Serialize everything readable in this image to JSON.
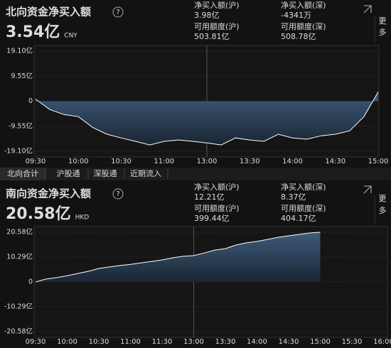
{
  "chart_data": [
    {
      "type": "area",
      "title": "北向资金净买入额",
      "help": "?",
      "total": "3.54亿",
      "currency": "CNY",
      "stats": [
        {
          "label": "净买入额(沪)",
          "value": "3.98亿",
          "color": "#f0323c"
        },
        {
          "label": "净买入额(深)",
          "value": "-4341万",
          "color": "#2fbf4a"
        },
        {
          "label": "可用额度(沪)",
          "value": "503.81亿",
          "color": "#dddddd"
        },
        {
          "label": "可用额度(深)",
          "value": "508.78亿",
          "color": "#dddddd"
        }
      ],
      "xticks": [
        "09:30",
        "10:00",
        "10:30",
        "11:00",
        "13:00",
        "13:30",
        "14:00",
        "14:30",
        "15:00"
      ],
      "ylim": [
        -19.1,
        19.1
      ],
      "yticks": [
        {
          "value": 19.1,
          "label": "19.10亿"
        },
        {
          "value": 9.55,
          "label": "9.55亿"
        },
        0,
        {
          "value": -9.55,
          "label": "-9.55亿"
        },
        {
          "value": -19.1,
          "label": "-19.10亿"
        }
      ],
      "x": [
        "09:30",
        "09:40",
        "09:50",
        "10:00",
        "10:10",
        "10:20",
        "10:30",
        "10:40",
        "10:50",
        "11:00",
        "11:10",
        "11:20",
        "11:30",
        "13:10",
        "13:20",
        "13:30",
        "13:40",
        "13:50",
        "14:00",
        "14:10",
        "14:20",
        "14:30",
        "14:40",
        "14:50",
        "15:00"
      ],
      "series": [
        {
          "name": "北向资金净买入额",
          "color": "#ffffff",
          "values": [
            0.8,
            -3.2,
            -5.1,
            -5.9,
            -10,
            -12.6,
            -14,
            -15.3,
            -16.7,
            -15.3,
            -14.8,
            -15.3,
            -15.9,
            -16.7,
            -14,
            -14.8,
            -15.3,
            -12.6,
            -14,
            -14.5,
            -13.2,
            -12.6,
            -11.3,
            -5.9,
            3.54
          ]
        }
      ]
    },
    {
      "type": "area",
      "title": "南向资金净买入额",
      "help": "?",
      "total": "20.58亿",
      "currency": "HKD",
      "stats": [
        {
          "label": "净买入额(沪)",
          "value": "12.21亿",
          "color": "#f0323c"
        },
        {
          "label": "净买入额(深)",
          "value": "8.37亿",
          "color": "#f0323c"
        },
        {
          "label": "可用额度(沪)",
          "value": "399.44亿",
          "color": "#dddddd"
        },
        {
          "label": "可用额度(深)",
          "value": "404.17亿",
          "color": "#dddddd"
        }
      ],
      "xticks": [
        "09:30",
        "10:00",
        "10:30",
        "11:00",
        "11:30",
        "13:00",
        "13:30",
        "14:00",
        "14:30",
        "15:00",
        "15:30",
        "16:00"
      ],
      "ylim": [
        -20.58,
        20.58
      ],
      "yticks": [
        {
          "value": 20.58,
          "label": "20.58亿"
        },
        {
          "value": 10.29,
          "label": "10.29亿"
        },
        0,
        {
          "value": -10.29,
          "label": "-10.29亿"
        },
        {
          "value": -20.58,
          "label": "-20.58亿"
        }
      ],
      "x": [
        "09:30",
        "09:40",
        "09:50",
        "10:00",
        "10:10",
        "10:20",
        "10:30",
        "10:40",
        "10:50",
        "11:00",
        "11:10",
        "11:20",
        "11:30",
        "11:40",
        "11:50",
        "12:00",
        "13:10",
        "13:20",
        "13:30",
        "13:40",
        "13:50",
        "14:00",
        "14:10",
        "14:20",
        "14:30",
        "14:40",
        "14:50",
        "15:00"
      ],
      "series": [
        {
          "name": "南向资金净买入额",
          "color": "#ffffff",
          "values": [
            0,
            1.2,
            1.8,
            2.6,
            3.5,
            4.4,
            5.6,
            6.2,
            6.8,
            7.3,
            7.9,
            8.5,
            9.1,
            10.0,
            10.6,
            10.9,
            12.0,
            13.2,
            13.8,
            15.3,
            16.2,
            16.8,
            17.6,
            18.5,
            19.1,
            19.7,
            20.3,
            20.58
          ]
        }
      ]
    }
  ],
  "tabs": [
    "北向合计",
    "沪股通",
    "深股通",
    "近期流入"
  ],
  "more": [
    "更",
    "多"
  ]
}
